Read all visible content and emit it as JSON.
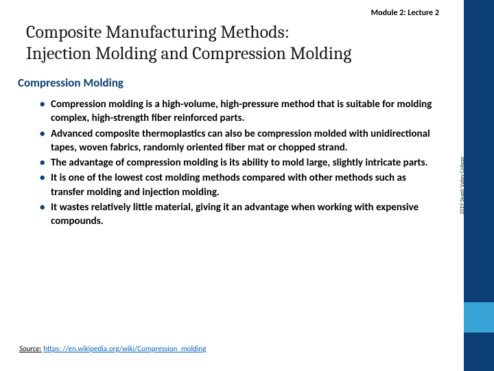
{
  "module_label": "Module 2: Lecture 2",
  "title_line1": "Composite Manufacturing Methods:",
  "title_line2": "Injection Molding and Compression Molding",
  "section_heading": "Compression Molding",
  "bullets": [
    "Compression molding is a high-volume, high-pressure method that is suitable for molding complex, high-strength fiber reinforced parts.",
    " Advanced composite thermoplastics can also be compression molded with unidirectional tapes, woven fabrics, randomly oriented fiber mat or chopped strand.",
    "The advantage of compression molding is its ability to mold large, slightly intricate parts.",
    "It is one of the lowest cost molding methods compared with other methods such as transfer molding and injection molding.",
    "It wastes relatively little material, giving it an advantage when working with expensive compounds."
  ],
  "source_label": "Source:",
  "source_url_text": "https: //en.wikipedia.org/wiki/Compression_molding",
  "credit": "2019 Skagit Valley College",
  "colors": {
    "sidebar": "#0b3e75",
    "accent": "#39a5d6",
    "heading": "#0b3e75",
    "link": "#0563c1"
  }
}
